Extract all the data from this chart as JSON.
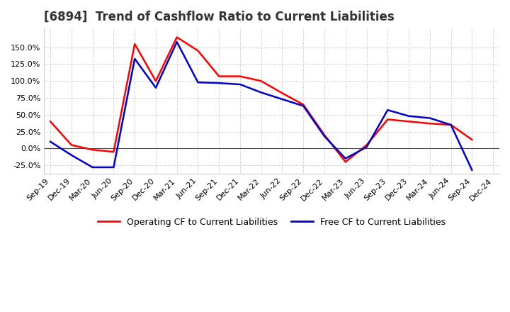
{
  "title": "[6894]  Trend of Cashflow Ratio to Current Liabilities",
  "x_labels": [
    "Sep-19",
    "Dec-19",
    "Mar-20",
    "Jun-20",
    "Sep-20",
    "Dec-20",
    "Mar-21",
    "Jun-21",
    "Sep-21",
    "Dec-21",
    "Mar-22",
    "Jun-22",
    "Sep-22",
    "Dec-22",
    "Mar-23",
    "Jun-23",
    "Sep-23",
    "Dec-23",
    "Mar-24",
    "Jun-24",
    "Sep-24",
    "Dec-24"
  ],
  "operating_cf": [
    40.0,
    5.0,
    -2.0,
    -5.0,
    155.0,
    100.0,
    165.0,
    145.0,
    107.0,
    107.0,
    100.0,
    82.0,
    65.0,
    20.0,
    -20.0,
    5.0,
    43.0,
    40.0,
    37.0,
    35.0,
    13.0,
    null
  ],
  "free_cf": [
    10.0,
    -10.0,
    -28.0,
    -28.0,
    133.0,
    90.0,
    158.0,
    98.0,
    97.0,
    95.0,
    83.0,
    73.0,
    63.0,
    18.0,
    -15.0,
    2.0,
    57.0,
    48.0,
    45.0,
    35.0,
    -32.0,
    null
  ],
  "operating_color": "#ff0000",
  "free_color": "#0000cc",
  "ylim": [
    -37.5,
    178.0
  ],
  "yticks": [
    -25.0,
    0.0,
    25.0,
    50.0,
    75.0,
    100.0,
    125.0,
    150.0
  ],
  "background_color": "#ffffff",
  "plot_bg_color": "#ffffff",
  "grid_color": "#aaaaaa",
  "title_fontsize": 12,
  "title_color": "#333333",
  "legend_fontsize": 9,
  "tick_fontsize": 8
}
